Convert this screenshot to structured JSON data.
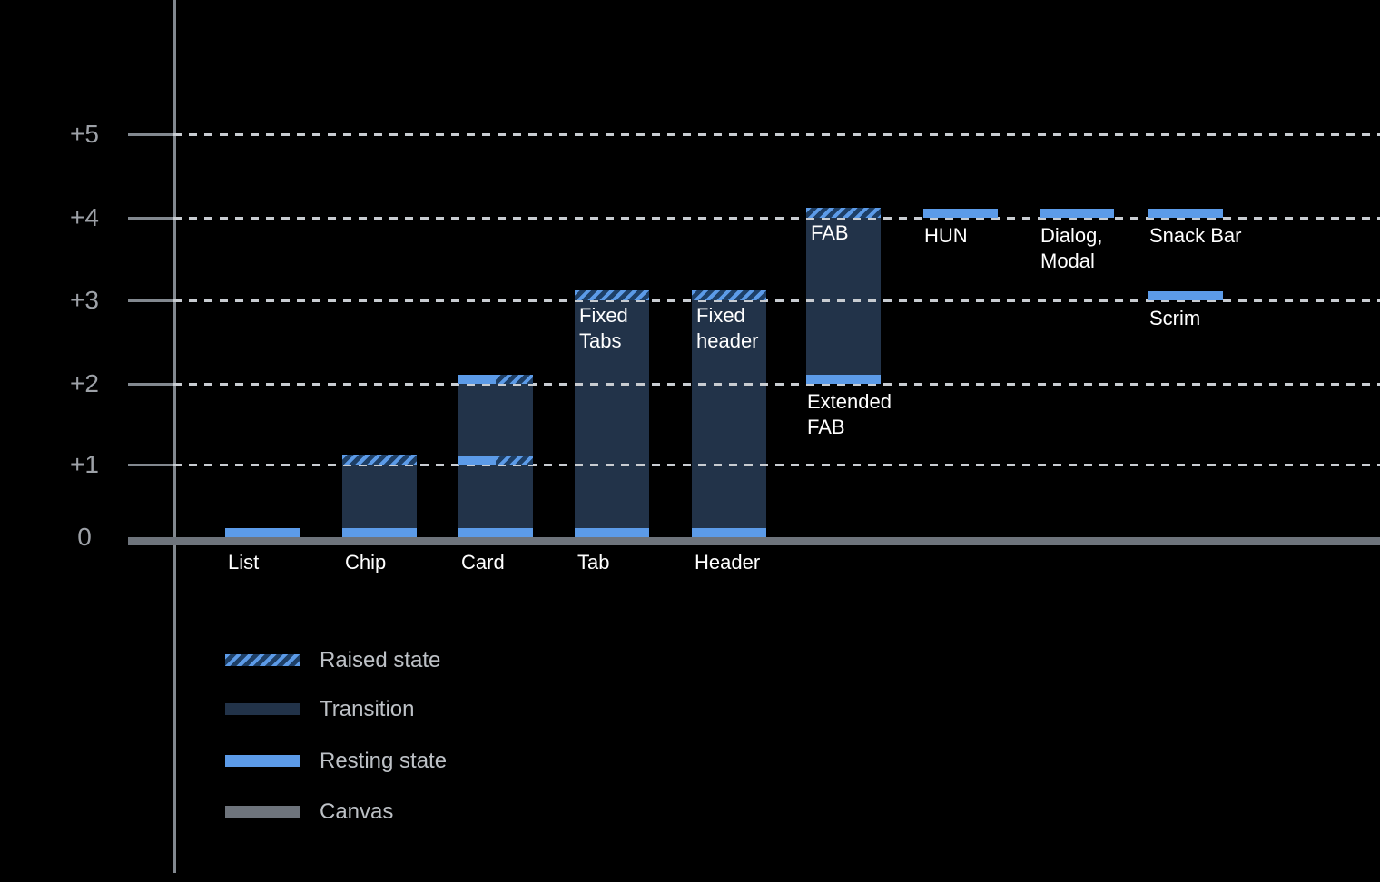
{
  "chart_data": {
    "type": "bar",
    "variant": "material-elevation-range-chart",
    "title": "",
    "xlabel": "",
    "ylabel": "",
    "ylim": [
      0,
      5.5
    ],
    "grid": "dotted horizontal gridlines at +1 through +5, solid canvas baseline at 0",
    "legend_position": "bottom-left",
    "y_ticks": [
      {
        "label": "+5",
        "level": 5
      },
      {
        "label": "+4",
        "level": 4
      },
      {
        "label": "+3",
        "level": 3
      },
      {
        "label": "+2",
        "level": 2
      },
      {
        "label": "+1",
        "level": 1
      },
      {
        "label": "0",
        "level": 0
      }
    ],
    "gridline_levels": [
      1,
      2,
      3,
      4,
      5
    ],
    "bars": [
      {
        "name": "List",
        "slot": 0,
        "base_label": "List",
        "segments": [
          {
            "kind": "resting",
            "at": 0
          }
        ]
      },
      {
        "name": "Chip",
        "slot": 1,
        "base_label": "Chip",
        "segments": [
          {
            "kind": "resting",
            "at": 0
          },
          {
            "kind": "transition",
            "from": 0,
            "to": 1
          },
          {
            "kind": "raised",
            "at": 1
          }
        ]
      },
      {
        "name": "Card",
        "slot": 2,
        "base_label": "Card",
        "segments": [
          {
            "kind": "resting",
            "at": 0
          },
          {
            "kind": "transition",
            "from": 0,
            "to": 1
          },
          {
            "kind": "resting-raised",
            "at": 1
          },
          {
            "kind": "transition",
            "from": 1,
            "to": 2
          },
          {
            "kind": "resting-raised",
            "at": 2
          }
        ]
      },
      {
        "name": "Tab",
        "slot": 3,
        "base_label": "Tab",
        "top_label": "Fixed\nTabs",
        "segments": [
          {
            "kind": "resting",
            "at": 0
          },
          {
            "kind": "transition",
            "from": 0,
            "to": 3
          },
          {
            "kind": "raised",
            "at": 3
          }
        ]
      },
      {
        "name": "Header",
        "slot": 4,
        "base_label": "Header",
        "top_label": "Fixed\nheader",
        "segments": [
          {
            "kind": "resting",
            "at": 0
          },
          {
            "kind": "transition",
            "from": 0,
            "to": 3
          },
          {
            "kind": "raised",
            "at": 3
          }
        ]
      },
      {
        "name": "FAB / Extended FAB",
        "slot": 5,
        "top_label": "FAB",
        "below_label": "Extended\nFAB",
        "segments": [
          {
            "kind": "resting",
            "at": 2
          },
          {
            "kind": "transition",
            "from": 2,
            "to": 4
          },
          {
            "kind": "raised",
            "at": 4
          }
        ]
      },
      {
        "name": "HUN",
        "slot": 6,
        "below_label": "HUN",
        "segments": [
          {
            "kind": "resting",
            "at": 4
          }
        ]
      },
      {
        "name": "Dialog, Modal",
        "slot": 7,
        "below_label": "Dialog,\nModal",
        "segments": [
          {
            "kind": "resting",
            "at": 4
          }
        ]
      },
      {
        "name": "Snack Bar",
        "slot": 8,
        "below_label": "Snack Bar",
        "segments": [
          {
            "kind": "resting",
            "at": 4
          }
        ]
      },
      {
        "name": "Scrim",
        "slot": 8,
        "below_label": "Scrim",
        "segments": [
          {
            "kind": "resting",
            "at": 3
          }
        ]
      }
    ],
    "legend": [
      {
        "swatch": "raised",
        "label": "Raised state"
      },
      {
        "swatch": "transition",
        "label": "Transition"
      },
      {
        "swatch": "resting",
        "label": "Resting state"
      },
      {
        "swatch": "canvas",
        "label": "Canvas"
      }
    ],
    "colors": {
      "background": "#000000",
      "resting": "#5C9BE8",
      "transition": "#223349",
      "raised_bg": "#1E3F66",
      "raised_stripe": "#5C9BE8",
      "canvas": "#6E747C",
      "axis": "#82888F",
      "grid_dash": "#C8CCD1",
      "tick_label": "#9DA1A7",
      "bar_label": "#FFFFFF",
      "legend_text": "#BDC1C6"
    }
  }
}
